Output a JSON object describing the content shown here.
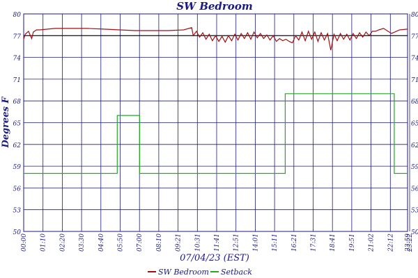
{
  "chart_data": {
    "type": "line",
    "title": "SW Bedroom",
    "xlabel": "07/04/23 (EST)",
    "ylabel": "Degrees F",
    "x_tick_labels": [
      "00:00",
      "01:10",
      "02:20",
      "03:30",
      "04:40",
      "05:50",
      "07:00",
      "08:10",
      "09:21",
      "10:31",
      "11:41",
      "12:51",
      "14:01",
      "15:11",
      "16:21",
      "17:31",
      "18:41",
      "19:51",
      "21:02",
      "22:12",
      "23:22",
      "23:59"
    ],
    "y_ticks_left": [
      "50",
      "53",
      "56",
      "59",
      "62",
      "65",
      "68",
      "71",
      "74",
      "77",
      "80"
    ],
    "y_ticks_right": [
      "50",
      "53",
      "56",
      "59",
      "62",
      "65",
      "68",
      "71",
      "74",
      "77",
      "80"
    ],
    "ylim": [
      50,
      80
    ],
    "xlim_hours": [
      0,
      24
    ],
    "grid": true,
    "reference_line": 77.0,
    "legend_position": "bottom-center",
    "series": [
      {
        "name": "SW Bedroom",
        "color": "#a01010",
        "x_hours": [
          0.0,
          0.1,
          0.3,
          0.5,
          0.6,
          0.8,
          1.0,
          1.5,
          2.0,
          3.0,
          4.0,
          5.0,
          6.0,
          7.0,
          8.0,
          9.0,
          10.0,
          10.5,
          10.6,
          10.8,
          11.0,
          11.2,
          11.4,
          11.6,
          11.8,
          12.0,
          12.2,
          12.4,
          12.6,
          12.8,
          13.0,
          13.2,
          13.4,
          13.6,
          13.8,
          14.0,
          14.2,
          14.4,
          14.6,
          14.8,
          15.0,
          15.2,
          15.4,
          15.6,
          15.8,
          16.0,
          16.2,
          16.4,
          16.6,
          16.8,
          17.0,
          17.2,
          17.4,
          17.6,
          17.8,
          18.0,
          18.2,
          18.4,
          18.6,
          18.8,
          19.0,
          19.2,
          19.4,
          19.6,
          19.8,
          20.0,
          20.2,
          20.4,
          20.6,
          20.8,
          21.0,
          21.2,
          21.4,
          21.6,
          21.8,
          22.0,
          22.2,
          22.5,
          23.0,
          23.5,
          24.0
        ],
        "values": [
          76.5,
          77.2,
          77.6,
          76.6,
          77.5,
          77.8,
          77.8,
          77.9,
          78.0,
          78.0,
          78.0,
          77.9,
          77.8,
          77.7,
          77.7,
          77.7,
          77.8,
          78.1,
          77.0,
          77.6,
          76.8,
          77.4,
          76.5,
          77.2,
          76.3,
          77.0,
          76.2,
          76.9,
          76.1,
          77.0,
          76.3,
          77.2,
          76.4,
          77.3,
          76.6,
          77.4,
          76.5,
          77.5,
          76.7,
          77.3,
          76.6,
          77.1,
          76.4,
          77.0,
          76.2,
          76.6,
          76.3,
          76.5,
          76.2,
          76.0,
          77.0,
          76.4,
          77.5,
          76.3,
          77.6,
          76.5,
          77.5,
          76.2,
          77.4,
          76.4,
          77.3,
          75.0,
          77.2,
          76.3,
          77.3,
          76.5,
          77.2,
          76.4,
          77.3,
          76.6,
          77.4,
          76.8,
          77.5,
          77.0,
          77.6,
          77.6,
          77.8,
          78.0,
          77.3,
          77.8,
          77.9
        ]
      },
      {
        "name": "Setback",
        "color": "#22aa22",
        "x_hours": [
          0.0,
          5.85,
          5.85,
          7.25,
          7.25,
          16.35,
          16.35,
          23.17,
          23.17,
          24.0
        ],
        "values": [
          58.0,
          58.0,
          66.0,
          66.0,
          58.0,
          58.0,
          69.0,
          69.0,
          58.0,
          58.0
        ]
      }
    ]
  }
}
